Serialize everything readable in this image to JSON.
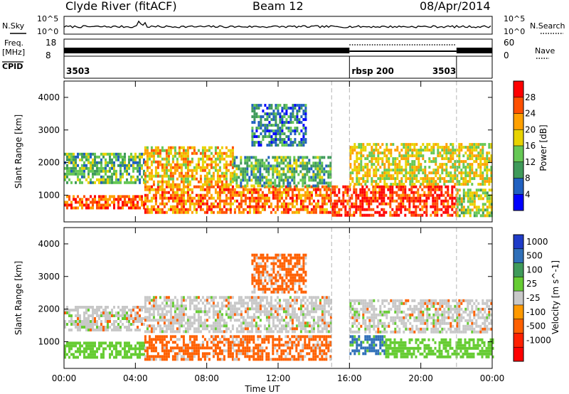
{
  "header": {
    "station": "Clyde River (fitACF)",
    "beam": "Beam 12",
    "date": "08/Apr/2014"
  },
  "params": {
    "nsky_label": "N.Sky",
    "nsearch_label": "N.Search",
    "freq_label_1": "Freq.",
    "freq_label_2": "[MHz]",
    "nave_label": "Nave",
    "cpid_label": "CPID",
    "nsky_ticks": [
      "10^5",
      "10^0"
    ],
    "nsearch_ticks": [
      "10^5",
      "10^0"
    ],
    "freq_ticks": [
      "18",
      "8"
    ],
    "nave_ticks": [
      "60",
      "0"
    ],
    "cpid_segments": [
      {
        "label": "3503",
        "start_hour": 0,
        "end_hour": 16,
        "label_side": "left"
      },
      {
        "label": "rbsp 200",
        "start_hour": 16,
        "end_hour": 22,
        "label_side": "left"
      },
      {
        "label": "3503",
        "start_hour": 22,
        "end_hour": 24,
        "label_side": "right"
      }
    ]
  },
  "chart_data": [
    {
      "type": "heatmap",
      "title": "",
      "xlabel": "",
      "ylabel": "Slant Range [km]",
      "xlim": [
        0,
        24
      ],
      "ylim": [
        180,
        4500
      ],
      "yticks": [
        1000,
        2000,
        3000,
        4000
      ],
      "colorbar": {
        "label": "Power [dB]",
        "range": [
          0,
          32
        ],
        "ticks": [
          "4",
          "8",
          "12",
          "16",
          "20",
          "24",
          "28"
        ],
        "colors": [
          "#0000ff",
          "#2060c0",
          "#3f9a5a",
          "#66c855",
          "#e8d300",
          "#ffa000",
          "#ff5000",
          "#ff0000"
        ]
      },
      "regions": [
        {
          "t0": 0.0,
          "t1": 4.5,
          "r0": 600,
          "r1": 1000,
          "value": 26
        },
        {
          "t0": 0.0,
          "t1": 4.5,
          "r0": 1400,
          "r1": 2300,
          "value": 12
        },
        {
          "t0": 4.5,
          "t1": 15.0,
          "r0": 500,
          "r1": 1300,
          "value": 24
        },
        {
          "t0": 4.5,
          "t1": 9.5,
          "r0": 1300,
          "r1": 2500,
          "value": 20
        },
        {
          "t0": 9.5,
          "t1": 15.0,
          "r0": 1300,
          "r1": 2200,
          "value": 12
        },
        {
          "t0": 10.5,
          "t1": 13.5,
          "r0": 2500,
          "r1": 3800,
          "value": 8
        },
        {
          "t0": 15.0,
          "t1": 22.0,
          "r0": 400,
          "r1": 1300,
          "value": 28
        },
        {
          "t0": 16.0,
          "t1": 24.0,
          "r0": 1300,
          "r1": 2600,
          "value": 18
        },
        {
          "t0": 22.0,
          "t1": 24.0,
          "r0": 400,
          "r1": 1200,
          "value": 16
        }
      ]
    },
    {
      "type": "heatmap",
      "title": "",
      "xlabel": "Time UT",
      "ylabel": "Slant Range [km]",
      "xlim": [
        0,
        24
      ],
      "ylim": [
        180,
        4500
      ],
      "yticks": [
        1000,
        2000,
        3000,
        4000
      ],
      "xticks": [
        "00:00",
        "04:00",
        "08:00",
        "12:00",
        "16:00",
        "20:00",
        "00:00"
      ],
      "colorbar": {
        "label": "Velocity [m s^-1]",
        "ticks": [
          "1000",
          "500",
          "100",
          "25",
          "-25",
          "-100",
          "-500",
          "-1000"
        ],
        "colors": [
          "#1f3cc8",
          "#2f6fb8",
          "#3f9a5a",
          "#66cc33",
          "#c8c8c8",
          "#ff9900",
          "#ff6000",
          "#ff2000",
          "#ff0000"
        ]
      },
      "regions": [
        {
          "t0": 0.0,
          "t1": 4.5,
          "r0": 500,
          "r1": 1000,
          "value": 60
        },
        {
          "t0": 0.0,
          "t1": 4.5,
          "r0": 1400,
          "r1": 2100,
          "value": 0
        },
        {
          "t0": 4.5,
          "t1": 9.5,
          "r0": 500,
          "r1": 1200,
          "value": -150
        },
        {
          "t0": 4.5,
          "t1": 15.0,
          "r0": 1300,
          "r1": 2400,
          "value": 0
        },
        {
          "t0": 9.5,
          "t1": 15.0,
          "r0": 500,
          "r1": 1200,
          "value": -150
        },
        {
          "t0": 10.5,
          "t1": 13.5,
          "r0": 2500,
          "r1": 3700,
          "value": -150
        },
        {
          "t0": 16.0,
          "t1": 18.0,
          "r0": 600,
          "r1": 1200,
          "value": 800
        },
        {
          "t0": 18.0,
          "t1": 24.0,
          "r0": 500,
          "r1": 1100,
          "value": 60
        },
        {
          "t0": 16.0,
          "t1": 24.0,
          "r0": 1300,
          "r1": 2300,
          "value": 0
        }
      ]
    }
  ]
}
